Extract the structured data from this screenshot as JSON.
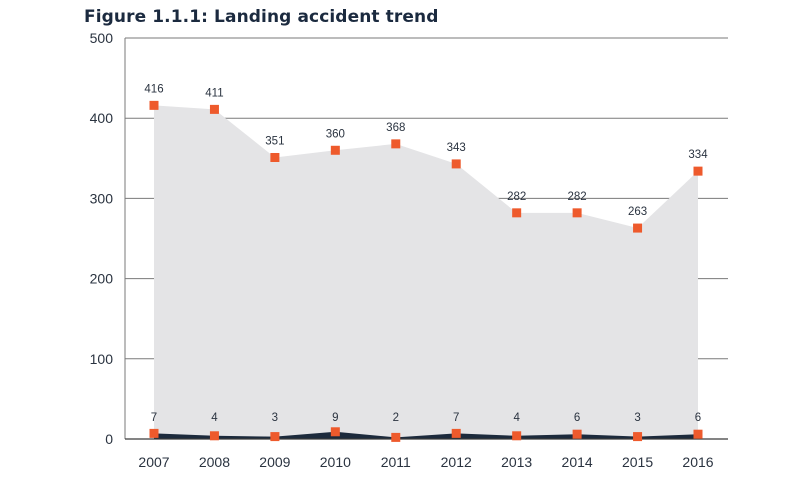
{
  "chart_data": {
    "type": "area",
    "title": "Figure 1.1.1: Landing accident trend",
    "categories": [
      "2007",
      "2008",
      "2009",
      "2010",
      "2011",
      "2012",
      "2013",
      "2014",
      "2015",
      "2016"
    ],
    "series": [
      {
        "values": [
          416,
          411,
          351,
          360,
          368,
          343,
          282,
          282,
          263,
          334
        ]
      },
      {
        "values": [
          7,
          4,
          3,
          9,
          2,
          7,
          4,
          6,
          3,
          6
        ]
      }
    ],
    "ylim": [
      0,
      500
    ],
    "yticks": [
      0,
      100,
      200,
      300,
      400,
      500
    ],
    "grid": true,
    "colors": {
      "area_top": "#e4e4e6",
      "area_bottom": "#1c2a3c",
      "marker": "#ee5a2c",
      "grid": "#7a7a7a",
      "title": "#1b2a3f"
    }
  }
}
